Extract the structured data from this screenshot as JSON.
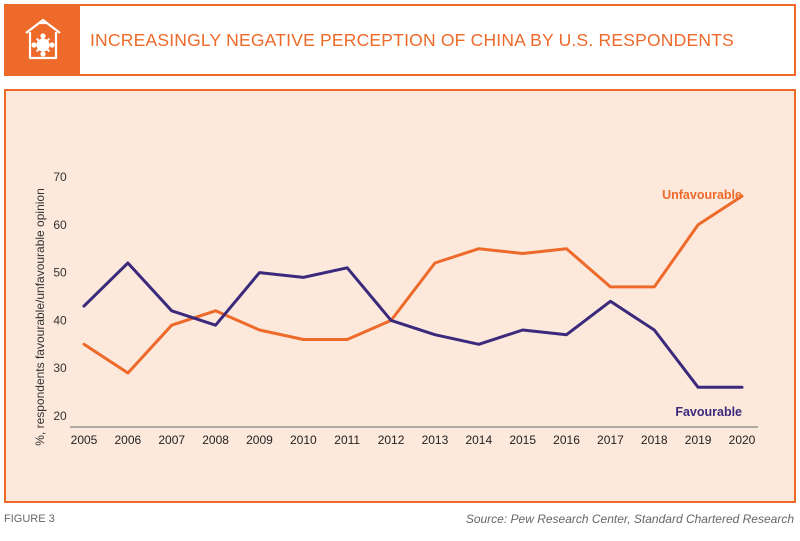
{
  "header": {
    "title": "INCREASINGLY NEGATIVE PERCEPTION OF CHINA BY U.S. RESPONDENTS",
    "icon": "virus-box-icon"
  },
  "footer": {
    "figure_label": "FIGURE 3",
    "source": "Source: Pew Research Center, Standard Chartered Research"
  },
  "colors": {
    "accent": "#ee6a2a",
    "favourable": "#3b2a7c",
    "unfavourable": "#ee6a2a",
    "panel_bg": "#fde8dc"
  },
  "chart_data": {
    "type": "line",
    "title": "",
    "xlabel": "",
    "ylabel": "%, respondents favourable/unfavourable opinion",
    "x": [
      2005,
      2006,
      2007,
      2008,
      2009,
      2010,
      2011,
      2012,
      2013,
      2014,
      2015,
      2016,
      2017,
      2018,
      2019,
      2020
    ],
    "ylim": [
      20,
      70
    ],
    "yticks": [
      20,
      30,
      40,
      50,
      60,
      70
    ],
    "grid": false,
    "series": [
      {
        "name": "Unfavourable",
        "color": "#ee6a2a",
        "values": [
          35,
          29,
          39,
          42,
          38,
          36,
          36,
          40,
          52,
          55,
          54,
          55,
          47,
          47,
          60,
          66
        ]
      },
      {
        "name": "Favourable",
        "color": "#3b2a7c",
        "values": [
          43,
          52,
          42,
          39,
          50,
          49,
          51,
          40,
          37,
          35,
          38,
          37,
          44,
          38,
          26,
          26
        ]
      }
    ]
  }
}
